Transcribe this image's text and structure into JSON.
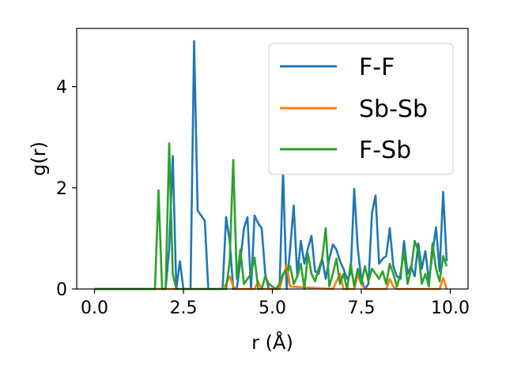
{
  "chart_data": {
    "type": "line",
    "title": "",
    "xlabel": "r (Å)",
    "ylabel": "g(r)",
    "xlim": [
      -0.5,
      10.5
    ],
    "ylim": [
      0,
      5.15
    ],
    "xticks": [
      0.0,
      2.5,
      5.0,
      7.5,
      10.0
    ],
    "xtick_labels": [
      "0.0",
      "2.5",
      "5.0",
      "7.5",
      "10.0"
    ],
    "yticks": [
      0,
      2,
      4
    ],
    "ytick_labels": [
      "0",
      "2",
      "4"
    ],
    "grid": false,
    "legend_position": "top-right",
    "series": [
      {
        "name": "F-F",
        "color": "#1f77b4",
        "x": [
          0.0,
          1.9,
          2.0,
          2.1,
          2.2,
          2.3,
          2.4,
          2.5,
          2.6,
          2.7,
          2.8,
          2.9,
          3.0,
          3.1,
          3.2,
          3.3,
          3.4,
          3.5,
          3.6,
          3.7,
          3.8,
          3.9,
          4.0,
          4.1,
          4.2,
          4.3,
          4.4,
          4.5,
          4.6,
          4.7,
          4.8,
          4.9,
          5.0,
          5.1,
          5.2,
          5.3,
          5.4,
          5.5,
          5.6,
          5.7,
          5.8,
          5.9,
          6.0,
          6.1,
          6.2,
          6.3,
          6.4,
          6.5,
          6.6,
          6.7,
          6.8,
          6.9,
          7.0,
          7.1,
          7.2,
          7.3,
          7.4,
          7.5,
          7.6,
          7.7,
          7.8,
          7.9,
          8.0,
          8.1,
          8.2,
          8.3,
          8.4,
          8.5,
          8.6,
          8.7,
          8.8,
          8.9,
          9.0,
          9.1,
          9.2,
          9.3,
          9.4,
          9.5,
          9.6,
          9.7,
          9.8,
          9.9
        ],
        "values": [
          0,
          0,
          0,
          0.8,
          2.63,
          0,
          0.55,
          0,
          0,
          0,
          4.9,
          1.55,
          1.45,
          1.35,
          0,
          0,
          0,
          0,
          0,
          1.42,
          0.95,
          0,
          0,
          0.55,
          1.2,
          1.42,
          0,
          1.45,
          1.3,
          1.2,
          0.3,
          0,
          0,
          0,
          0,
          2.33,
          0,
          0.8,
          1.65,
          0.25,
          0.95,
          0.5,
          0.8,
          1.05,
          0.35,
          0.3,
          0.6,
          0.2,
          0.6,
          0.88,
          0.78,
          0.55,
          0.4,
          0.2,
          0.3,
          1.98,
          0.8,
          0.2,
          0,
          0.1,
          1.5,
          1.85,
          0.5,
          0.6,
          0.65,
          1.2,
          0.45,
          0.25,
          0.2,
          0.95,
          0.3,
          0.45,
          0.25,
          0.9,
          0.4,
          0.75,
          0.15,
          0.7,
          1.22,
          0.35,
          1.92,
          0.55
        ]
      },
      {
        "name": "Sb-Sb",
        "color": "#ff7f0e",
        "x": [
          0.0,
          3.6,
          3.7,
          3.8,
          3.9,
          4.0,
          4.5,
          4.6,
          4.7,
          5.2,
          5.3,
          5.4,
          5.5,
          6.7,
          6.8,
          6.9,
          7.0,
          7.3,
          7.4,
          7.5,
          7.6,
          8.2,
          8.3,
          8.4,
          8.5,
          9.7,
          9.8,
          9.9
        ],
        "values": [
          0,
          0,
          0.1,
          0.25,
          0.05,
          0,
          0,
          0.15,
          0,
          0,
          0.25,
          0.47,
          0.05,
          0,
          0.15,
          0.3,
          0,
          0,
          0.28,
          0.1,
          0,
          0,
          0.2,
          0.05,
          0,
          0,
          0.22,
          0
        ]
      },
      {
        "name": "F-Sb",
        "color": "#2ca02c",
        "x": [
          0.0,
          1.7,
          1.8,
          1.9,
          2.0,
          2.1,
          2.2,
          2.3,
          3.7,
          3.8,
          3.9,
          4.0,
          4.1,
          4.2,
          4.3,
          4.4,
          4.5,
          4.6,
          4.7,
          4.8,
          4.9,
          5.0,
          5.1,
          5.2,
          5.3,
          5.4,
          5.5,
          5.6,
          5.7,
          5.8,
          5.9,
          6.0,
          6.1,
          6.2,
          6.3,
          6.4,
          6.5,
          6.6,
          6.7,
          6.8,
          6.9,
          7.0,
          7.1,
          7.2,
          7.3,
          7.4,
          7.5,
          7.6,
          7.7,
          7.8,
          7.9,
          8.0,
          8.1,
          8.2,
          8.3,
          8.4,
          8.5,
          8.6,
          8.7,
          8.8,
          8.9,
          9.0,
          9.1,
          9.2,
          9.3,
          9.4,
          9.5,
          9.6,
          9.7,
          9.8,
          9.9
        ],
        "values": [
          0,
          0,
          1.95,
          0,
          0,
          2.88,
          0.3,
          0,
          0,
          0.55,
          2.55,
          0.2,
          0.78,
          0.1,
          0.2,
          0.3,
          0.62,
          0,
          0,
          0.25,
          0.1,
          0.05,
          0,
          0.1,
          0.3,
          0.38,
          0.45,
          0.1,
          0.25,
          0.5,
          0,
          0.7,
          0.3,
          0.15,
          0.4,
          0.6,
          1.2,
          0.05,
          0.3,
          0.6,
          0.1,
          0.3,
          0,
          0.5,
          0.05,
          0.4,
          0.1,
          0.45,
          0.15,
          0.4,
          0.3,
          0.2,
          0.35,
          0.1,
          0.5,
          0.3,
          0.05,
          0.3,
          0.75,
          0.1,
          0.4,
          0.95,
          0.75,
          0.1,
          0.3,
          0.05,
          0.9,
          0.4,
          0.15,
          0.65,
          0.45
        ]
      }
    ]
  }
}
